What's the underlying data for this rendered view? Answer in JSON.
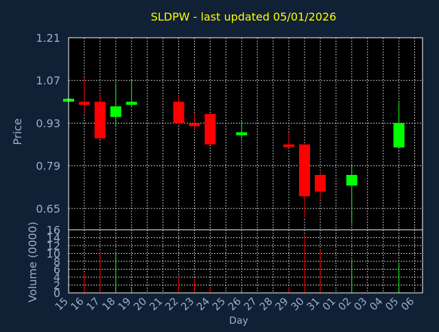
{
  "chart_title": "SLDPW - last updated 05/01/2026",
  "colors": {
    "background": "#102035",
    "plot_background": "#000000",
    "frame": "#ffffff",
    "grid": "#c8c8c8",
    "title": "#ffff00",
    "axis_text": "#9ab0cc",
    "up": "#00ff00",
    "down": "#ff0000"
  },
  "chart_data": [
    {
      "type": "candlestick",
      "title": "SLDPW - last updated 05/01/2026",
      "ylabel": "Price",
      "ylim": [
        0.58,
        1.21
      ],
      "yticks": [
        1.21,
        1.07,
        0.93,
        0.79,
        0.65
      ],
      "grid": true,
      "candles": [
        {
          "day": "15",
          "open": 1.0,
          "high": 1.01,
          "low": 0.99,
          "close": 1.01
        },
        {
          "day": "16",
          "open": 1.0,
          "high": 1.08,
          "low": 0.96,
          "close": 0.99
        },
        {
          "day": "17",
          "open": 1.0,
          "high": 1.03,
          "low": 0.88,
          "close": 0.88
        },
        {
          "day": "18",
          "open": 0.95,
          "high": 1.06,
          "low": 0.92,
          "close": 0.985
        },
        {
          "day": "19",
          "open": 0.99,
          "high": 1.07,
          "low": 0.985,
          "close": 1.0
        },
        {
          "day": "22",
          "open": 1.0,
          "high": 1.02,
          "low": 0.925,
          "close": 0.93
        },
        {
          "day": "23",
          "open": 0.93,
          "high": 0.96,
          "low": 0.91,
          "close": 0.92
        },
        {
          "day": "24",
          "open": 0.96,
          "high": 0.96,
          "low": 0.86,
          "close": 0.86
        },
        {
          "day": "26",
          "open": 0.89,
          "high": 0.94,
          "low": 0.88,
          "close": 0.9
        },
        {
          "day": "29",
          "open": 0.86,
          "high": 0.9,
          "low": 0.855,
          "close": 0.855
        },
        {
          "day": "30",
          "open": 0.86,
          "high": 0.86,
          "low": 0.62,
          "close": 0.69
        },
        {
          "day": "31",
          "open": 0.76,
          "high": 0.77,
          "low": 0.68,
          "close": 0.705
        },
        {
          "day": "02",
          "open": 0.725,
          "high": 0.79,
          "low": 0.6,
          "close": 0.76
        },
        {
          "day": "05",
          "open": 0.85,
          "high": 1.0,
          "low": 0.85,
          "close": 0.93
        }
      ]
    },
    {
      "type": "bar",
      "ylabel": "Volume (0000)",
      "xlabel": "Day",
      "ylim": [
        0,
        16
      ],
      "yticks": [
        0,
        2,
        4,
        6,
        8,
        10,
        12,
        14,
        16
      ],
      "grid": true,
      "categories": [
        "15",
        "16",
        "17",
        "18",
        "19",
        "20",
        "21",
        "22",
        "23",
        "24",
        "25",
        "26",
        "27",
        "28",
        "29",
        "30",
        "31",
        "01",
        "02",
        "03",
        "04",
        "05",
        "06"
      ],
      "volumes": [
        {
          "day": "16",
          "value": 5,
          "direction": "down"
        },
        {
          "day": "17",
          "value": 10.5,
          "direction": "down"
        },
        {
          "day": "18",
          "value": 10.5,
          "direction": "up"
        },
        {
          "day": "19",
          "value": 1.5,
          "direction": "up"
        },
        {
          "day": "22",
          "value": 4,
          "direction": "down"
        },
        {
          "day": "23",
          "value": 3.5,
          "direction": "down"
        },
        {
          "day": "24",
          "value": 1.5,
          "direction": "down"
        },
        {
          "day": "26",
          "value": 0.8,
          "direction": "up"
        },
        {
          "day": "29",
          "value": 1.5,
          "direction": "down"
        },
        {
          "day": "30",
          "value": 14.5,
          "direction": "down"
        },
        {
          "day": "31",
          "value": 11,
          "direction": "down"
        },
        {
          "day": "02",
          "value": 8.5,
          "direction": "up"
        },
        {
          "day": "05",
          "value": 7.5,
          "direction": "up"
        }
      ]
    }
  ]
}
